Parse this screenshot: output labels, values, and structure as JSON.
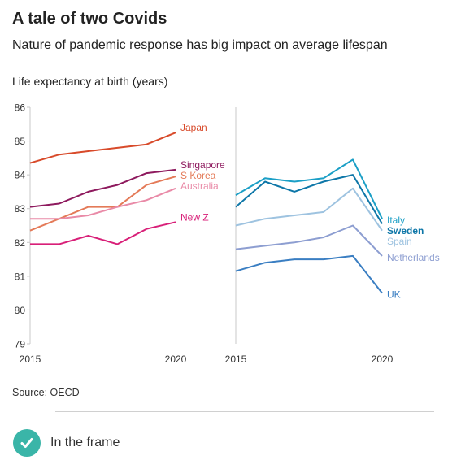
{
  "header": {
    "title": "A tale of two Covids",
    "subtitle": "Nature of pandemic response has big impact on average lifespan"
  },
  "footer": {
    "source": "Source: OECD",
    "frame_label": "In the frame",
    "frame_icon": "check-icon",
    "frame_color": "#3ab5a8"
  },
  "chart_data": {
    "type": "line",
    "ylabel": "Life expectancy at birth (years)",
    "ylim": [
      79,
      86
    ],
    "yticks": [
      79,
      80,
      81,
      82,
      83,
      84,
      85,
      86
    ],
    "xlim": [
      2015,
      2020
    ],
    "grid": false,
    "legend": "direct labels at line ends",
    "panels": [
      {
        "x": [
          2015,
          2016,
          2017,
          2018,
          2019,
          2020
        ],
        "xticks": [
          "2015",
          "2020"
        ],
        "series": [
          {
            "name": "Japan",
            "color": "#d84a2a",
            "values": [
              84.35,
              84.6,
              84.7,
              84.8,
              84.9,
              85.25
            ]
          },
          {
            "name": "Singapore",
            "color": "#8e1a5e",
            "values": [
              83.05,
              83.15,
              83.5,
              83.7,
              84.05,
              84.15
            ]
          },
          {
            "name": "S Korea",
            "color": "#e47a58",
            "values": [
              82.35,
              82.7,
              83.05,
              83.05,
              83.7,
              83.95
            ]
          },
          {
            "name": "Australia",
            "color": "#e98aa7",
            "values": [
              82.7,
              82.7,
              82.8,
              83.05,
              83.25,
              83.6
            ]
          },
          {
            "name": "New Z",
            "color": "#d81f78",
            "values": [
              81.95,
              81.95,
              82.2,
              81.95,
              82.4,
              82.6
            ]
          }
        ]
      },
      {
        "x": [
          2015,
          2016,
          2017,
          2018,
          2019,
          2020
        ],
        "xticks": [
          "2015",
          "2020"
        ],
        "series": [
          {
            "name": "Italy",
            "color": "#1b9fc6",
            "values": [
              83.4,
              83.9,
              83.8,
              83.9,
              84.45,
              82.7
            ]
          },
          {
            "name": "Sweden",
            "color": "#0e77a8",
            "values": [
              83.05,
              83.8,
              83.5,
              83.8,
              84.0,
              82.55
            ]
          },
          {
            "name": "Spain",
            "color": "#9ec3e0",
            "values": [
              82.5,
              82.7,
              82.8,
              82.9,
              83.6,
              82.35
            ]
          },
          {
            "name": "Netherlands",
            "color": "#8d9ed1",
            "values": [
              81.8,
              81.9,
              82.0,
              82.15,
              82.5,
              81.6
            ]
          },
          {
            "name": "UK",
            "color": "#3a7ec2",
            "values": [
              81.15,
              81.4,
              81.5,
              81.5,
              81.6,
              80.5
            ]
          }
        ]
      }
    ]
  }
}
